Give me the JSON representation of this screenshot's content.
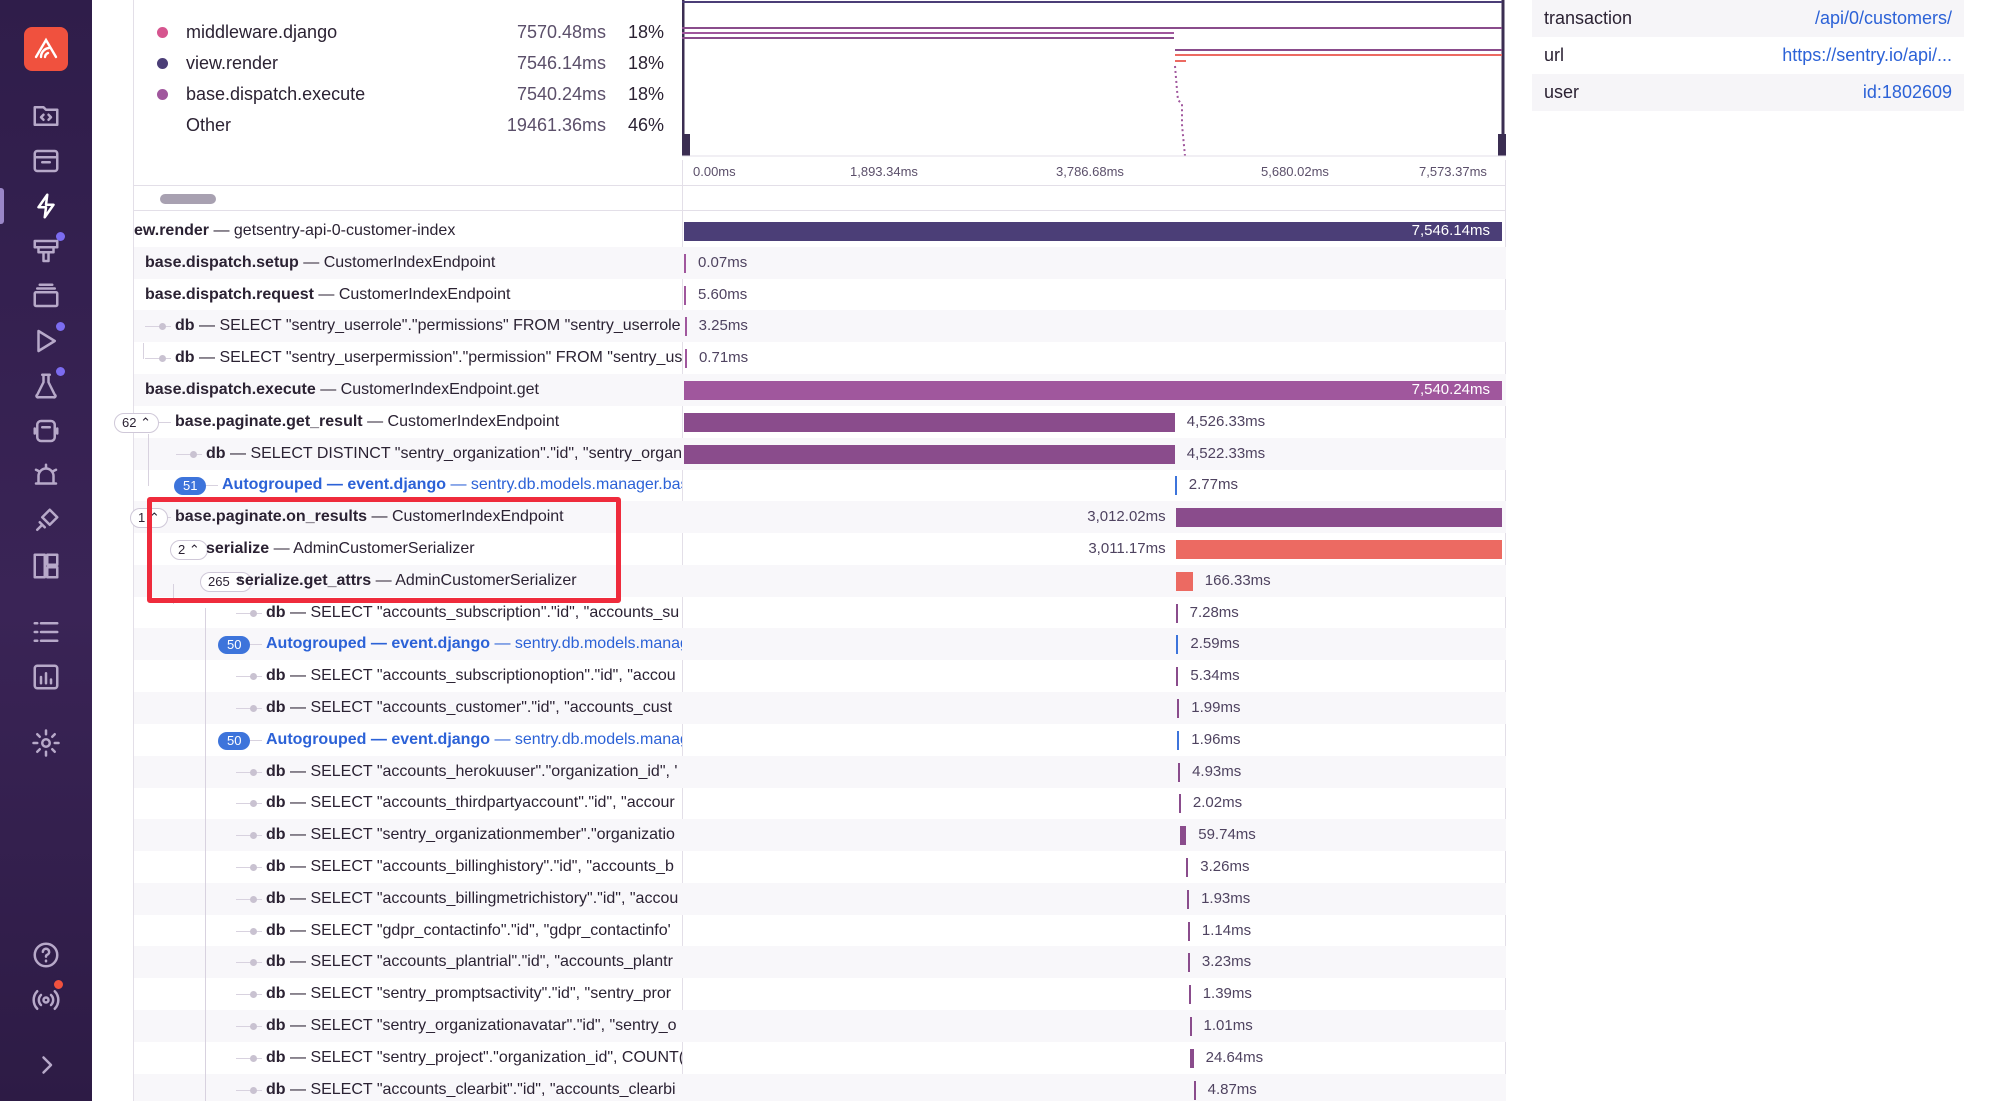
{
  "sidebar": {
    "items": [
      {
        "name": "code-icon"
      },
      {
        "name": "inbox-icon"
      },
      {
        "name": "performance-icon"
      },
      {
        "name": "dashboards-icon"
      },
      {
        "name": "stack-icon"
      },
      {
        "name": "replays-icon"
      },
      {
        "name": "flask-icon"
      },
      {
        "name": "crons-icon"
      },
      {
        "name": "alerts-icon"
      },
      {
        "name": "releases-icon"
      },
      {
        "name": "layout-icon"
      },
      {
        "name": "list-icon"
      },
      {
        "name": "stats-icon"
      },
      {
        "name": "settings-icon"
      },
      {
        "name": "help-icon"
      },
      {
        "name": "broadcast-icon"
      },
      {
        "name": "collapse-icon"
      }
    ]
  },
  "legend": [
    {
      "name": "middleware.django",
      "ms": "7570.48ms",
      "pct": "18%",
      "color": "#d6558f"
    },
    {
      "name": "view.render",
      "ms": "7546.14ms",
      "pct": "18%",
      "color": "#4b3e77"
    },
    {
      "name": "base.dispatch.execute",
      "ms": "7540.24ms",
      "pct": "18%",
      "color": "#a0579d"
    },
    {
      "name": "Other",
      "ms": "19461.36ms",
      "pct": "46%",
      "color": ""
    }
  ],
  "minimap": {
    "axis": [
      "0.00ms",
      "1,893.34ms",
      "3,786.68ms",
      "5,680.02ms",
      "7,573.37ms"
    ]
  },
  "tags": [
    {
      "key": "transaction",
      "value": "/api/0/customers/"
    },
    {
      "key": "url",
      "value": "https://sentry.io/api/..."
    },
    {
      "key": "user",
      "value": "id:1802609"
    }
  ],
  "spans": [
    {
      "op": "ew.render",
      "desc": "getsentry-api-0-customer-index",
      "dur": "7,546.14ms",
      "start": 0,
      "end": 1.0,
      "color": "#4b3e77",
      "inside": true
    },
    {
      "op": "base.dispatch.setup",
      "desc": "CustomerIndexEndpoint",
      "dur": "0.07ms",
      "start": 0.0,
      "end": 0.0005,
      "color": "#a0579d"
    },
    {
      "op": "base.dispatch.request",
      "desc": "CustomerIndexEndpoint",
      "dur": "5.60ms",
      "start": 0.0,
      "end": 0.001,
      "color": "#a0579d"
    },
    {
      "op": "db",
      "desc": "SELECT \"sentry_userrole\".\"permissions\" FROM \"sentry_userrole",
      "dur": "3.25ms",
      "start": 0.0008,
      "end": 0.0012,
      "color": "#a0579d"
    },
    {
      "op": "db",
      "desc": "SELECT \"sentry_userpermission\".\"permission\" FROM \"sentry_us",
      "dur": "0.71ms",
      "start": 0.0012,
      "end": 0.0014,
      "color": "#a0579d"
    },
    {
      "op": "base.dispatch.execute",
      "desc": "CustomerIndexEndpoint.get",
      "dur": "7,540.24ms",
      "start": 0.0,
      "end": 1.0,
      "color": "#a0579d",
      "inside": true
    },
    {
      "op": "base.paginate.get_result",
      "desc": "CustomerIndexEndpoint",
      "dur": "4,526.33ms",
      "start": 0.0,
      "end": 0.6,
      "color": "#8a4c8c",
      "toggle": "62"
    },
    {
      "op": "db",
      "desc": "SELECT DISTINCT \"sentry_organization\".\"id\", \"sentry_organ",
      "dur": "4,522.33ms",
      "start": 0.0,
      "end": 0.6,
      "color": "#8a4c8c"
    },
    {
      "op": "Autogrouped — event.django",
      "desc": "sentry.db.models.manager.base",
      "dur": "2.77ms",
      "start": 0.6,
      "end": 0.601,
      "color": "#3d74db",
      "auto": true,
      "count": "51"
    },
    {
      "op": "base.paginate.on_results",
      "desc": "CustomerIndexEndpoint",
      "dur": "3,012.02ms",
      "start": 0.601,
      "end": 1.0,
      "color": "#8a4c8c",
      "labelLeft": true,
      "toggle": "1"
    },
    {
      "op": "serialize",
      "desc": "AdminCustomerSerializer",
      "dur": "3,011.17ms",
      "start": 0.601,
      "end": 1.0,
      "color": "#ec6a62",
      "labelLeft": true,
      "toggle": "2"
    },
    {
      "op": "serialize.get_attrs",
      "desc": "AdminCustomerSerializer",
      "dur": "166.33ms",
      "start": 0.601,
      "end": 0.622,
      "color": "#ec6a62",
      "toggle": "265"
    },
    {
      "op": "db",
      "desc": "SELECT \"accounts_subscription\".\"id\", \"accounts_su",
      "dur": "7.28ms",
      "start": 0.601,
      "end": 0.602,
      "color": "#8a4c8c"
    },
    {
      "op": "Autogrouped — event.django",
      "desc": "sentry.db.models.manag",
      "dur": "2.59ms",
      "start": 0.602,
      "end": 0.603,
      "color": "#3d74db",
      "auto": true,
      "count": "50"
    },
    {
      "op": "db",
      "desc": "SELECT \"accounts_subscriptionoption\".\"id\", \"accou",
      "dur": "5.34ms",
      "start": 0.602,
      "end": 0.603,
      "color": "#8a4c8c"
    },
    {
      "op": "db",
      "desc": "SELECT \"accounts_customer\".\"id\", \"accounts_cust",
      "dur": "1.99ms",
      "start": 0.603,
      "end": 0.604,
      "color": "#8a4c8c"
    },
    {
      "op": "Autogrouped — event.django",
      "desc": "sentry.db.models.manag",
      "dur": "1.96ms",
      "start": 0.603,
      "end": 0.604,
      "color": "#3d74db",
      "auto": true,
      "count": "50"
    },
    {
      "op": "db",
      "desc": "SELECT \"accounts_herokuuser\".\"organization_id\", '",
      "dur": "4.93ms",
      "start": 0.604,
      "end": 0.605,
      "color": "#8a4c8c"
    },
    {
      "op": "db",
      "desc": "SELECT \"accounts_thirdpartyaccount\".\"id\", \"accour",
      "dur": "2.02ms",
      "start": 0.605,
      "end": 0.606,
      "color": "#8a4c8c"
    },
    {
      "op": "db",
      "desc": "SELECT \"sentry_organizationmember\".\"organizatio",
      "dur": "59.74ms",
      "start": 0.606,
      "end": 0.614,
      "color": "#8a4c8c"
    },
    {
      "op": "db",
      "desc": "SELECT \"accounts_billinghistory\".\"id\", \"accounts_b",
      "dur": "3.26ms",
      "start": 0.614,
      "end": 0.615,
      "color": "#8a4c8c"
    },
    {
      "op": "db",
      "desc": "SELECT \"accounts_billingmetrichistory\".\"id\", \"accou",
      "dur": "1.93ms",
      "start": 0.615,
      "end": 0.616,
      "color": "#8a4c8c"
    },
    {
      "op": "db",
      "desc": "SELECT \"gdpr_contactinfo\".\"id\", \"gdpr_contactinfo'",
      "dur": "1.14ms",
      "start": 0.616,
      "end": 0.617,
      "color": "#8a4c8c"
    },
    {
      "op": "db",
      "desc": "SELECT \"accounts_plantrial\".\"id\", \"accounts_plantr",
      "dur": "3.23ms",
      "start": 0.616,
      "end": 0.617,
      "color": "#8a4c8c"
    },
    {
      "op": "db",
      "desc": "SELECT \"sentry_promptsactivity\".\"id\", \"sentry_pror",
      "dur": "1.39ms",
      "start": 0.617,
      "end": 0.618,
      "color": "#8a4c8c"
    },
    {
      "op": "db",
      "desc": "SELECT \"sentry_organizationavatar\".\"id\", \"sentry_o",
      "dur": "1.01ms",
      "start": 0.618,
      "end": 0.619,
      "color": "#8a4c8c"
    },
    {
      "op": "db",
      "desc": "SELECT \"sentry_project\".\"organization_id\", COUNT(",
      "dur": "24.64ms",
      "start": 0.619,
      "end": 0.623,
      "color": "#8a4c8c"
    },
    {
      "op": "db",
      "desc": "SELECT \"accounts_clearbit\".\"id\", \"accounts_clearbi",
      "dur": "4.87ms",
      "start": 0.623,
      "end": 0.624,
      "color": "#8a4c8c"
    }
  ]
}
